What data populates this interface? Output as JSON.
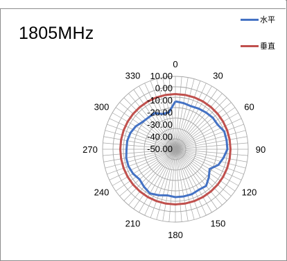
{
  "chart_data": {
    "type": "radar",
    "title": "1805MHz",
    "angle_ticks": [
      "0",
      "30",
      "60",
      "90",
      "120",
      "150",
      "180",
      "210",
      "240",
      "270",
      "300",
      "330"
    ],
    "radial_ticks": [
      "10.00",
      "0.00",
      "-10.00",
      "-20.00",
      "-30.00",
      "-40.00",
      "-50.00"
    ],
    "rlim": [
      -60,
      10
    ],
    "angle_grid_step": 5,
    "series": [
      {
        "name": "水平",
        "color": "#4472c4",
        "points": [
          [
            0,
            -14
          ],
          [
            10,
            -15
          ],
          [
            20,
            -16
          ],
          [
            30,
            -15
          ],
          [
            40,
            -14
          ],
          [
            50,
            -13
          ],
          [
            60,
            -13
          ],
          [
            70,
            -10
          ],
          [
            80,
            -10
          ],
          [
            90,
            -10
          ],
          [
            100,
            -13
          ],
          [
            110,
            -16
          ],
          [
            120,
            -22
          ],
          [
            130,
            -18
          ],
          [
            140,
            -14
          ],
          [
            150,
            -15
          ],
          [
            160,
            -14
          ],
          [
            170,
            -14
          ],
          [
            180,
            -14
          ],
          [
            190,
            -15
          ],
          [
            200,
            -13
          ],
          [
            210,
            -11
          ],
          [
            220,
            -13
          ],
          [
            230,
            -15
          ],
          [
            240,
            -13
          ],
          [
            250,
            -12
          ],
          [
            260,
            -12
          ],
          [
            270,
            -13
          ],
          [
            280,
            -13
          ],
          [
            290,
            -14
          ],
          [
            300,
            -16
          ],
          [
            310,
            -19
          ],
          [
            320,
            -20
          ],
          [
            330,
            -20
          ],
          [
            340,
            -24
          ],
          [
            350,
            -24
          ]
        ]
      },
      {
        "name": "垂直",
        "color": "#c0504d",
        "points": [
          [
            0,
            -7
          ],
          [
            10,
            -7
          ],
          [
            20,
            -7
          ],
          [
            30,
            -7
          ],
          [
            40,
            -7
          ],
          [
            50,
            -7
          ],
          [
            60,
            -7
          ],
          [
            70,
            -7
          ],
          [
            80,
            -7
          ],
          [
            90,
            -7
          ],
          [
            100,
            -7
          ],
          [
            110,
            -7
          ],
          [
            120,
            -7
          ],
          [
            130,
            -7
          ],
          [
            140,
            -7
          ],
          [
            150,
            -7
          ],
          [
            160,
            -7
          ],
          [
            170,
            -7
          ],
          [
            180,
            -7
          ],
          [
            190,
            -7
          ],
          [
            200,
            -7
          ],
          [
            210,
            -7
          ],
          [
            220,
            -7
          ],
          [
            230,
            -7
          ],
          [
            240,
            -7
          ],
          [
            250,
            -7
          ],
          [
            260,
            -7
          ],
          [
            270,
            -7
          ],
          [
            280,
            -7
          ],
          [
            290,
            -7
          ],
          [
            300,
            -7
          ],
          [
            310,
            -7
          ],
          [
            320,
            -7
          ],
          [
            330,
            -7
          ],
          [
            340,
            -7
          ],
          [
            350,
            -7
          ]
        ]
      }
    ],
    "grid": true,
    "legend_position": "top-right"
  }
}
